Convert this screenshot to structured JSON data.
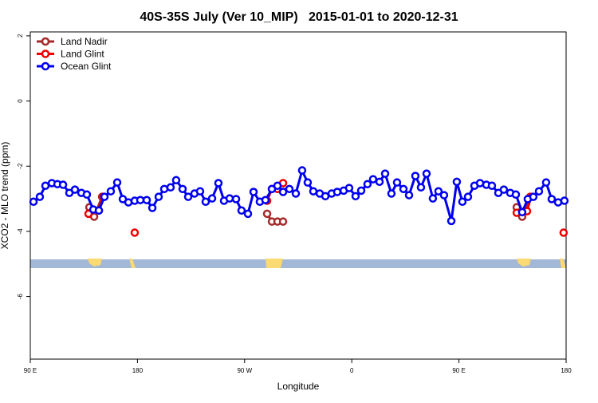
{
  "chart_data": {
    "type": "line",
    "title": "40S-35S July (Ver 10_MIP)   2015-01-01 to 2020-12-31",
    "xlabel": "Longitude",
    "ylabel": "XCO2 - MLO trend (ppm)",
    "xlim": [
      90,
      540
    ],
    "ylim": [
      -7.92,
      2.12
    ],
    "xticks": [
      {
        "value": 90,
        "label": "90 E"
      },
      180,
      {
        "value": 270,
        "label": "90 W"
      },
      {
        "value": 360,
        "label": "0"
      },
      {
        "value": 450,
        "label": "90 E"
      },
      {
        "value": 540,
        "label": "180"
      }
    ],
    "yticks": [
      2,
      0,
      -2,
      -4,
      -6
    ],
    "legend": "top-left",
    "series": [
      {
        "name": "Land Nadir",
        "color": "#a52a2a",
        "x": [
          139.6,
          143.6,
          150.3,
          null,
          288.9,
          292.9,
          297.6,
          302.3,
          null,
          498.5,
          503.1,
          509.8
        ],
        "values": [
          -3.26,
          -3.55,
          -2.94,
          null,
          -3.46,
          -3.7,
          -3.7,
          -3.7,
          null,
          -3.26,
          -3.55,
          -2.94
        ]
      },
      {
        "name": "Land Glint",
        "color": "#ee0000",
        "x": [
          138.9,
          147.6,
          150.9,
          null,
          177.7,
          null,
          288.9,
          292.9,
          297.6,
          302.3,
          null,
          498.5,
          507.2,
          510.5,
          null,
          537.9
        ],
        "values": [
          -3.46,
          -3.36,
          -2.94,
          null,
          -4.04,
          null,
          -3.06,
          -2.7,
          -2.7,
          -2.52,
          null,
          -3.43,
          -3.38,
          -2.94,
          null,
          -4.04
        ]
      },
      {
        "name": "Ocean Glint",
        "color": "#0000ee",
        "x": [
          92.7,
          98.0,
          102.7,
          108.1,
          112.8,
          117.5,
          122.8,
          127.5,
          132.9,
          137.5,
          142.9,
          147.6,
          152.3,
          157.6,
          163.0,
          167.7,
          172.4,
          177.7,
          182.4,
          187.8,
          192.5,
          197.8,
          202.5,
          207.8,
          212.5,
          217.9,
          222.6,
          227.9,
          232.6,
          237.3,
          242.7,
          248.0,
          252.7,
          257.4,
          262.8,
          267.4,
          272.8,
          277.5,
          282.8,
          287.5,
          292.9,
          297.6,
          302.3,
          307.6,
          313.0,
          318.3,
          323.0,
          327.7,
          333.1,
          337.8,
          343.1,
          347.8,
          353.2,
          357.8,
          363.2,
          367.9,
          373.2,
          377.9,
          383.3,
          388.0,
          393.3,
          398.0,
          403.4,
          408.1,
          413.4,
          418.1,
          422.8,
          428.1,
          432.8,
          437.5,
          443.6,
          448.2,
          452.9,
          457.6,
          463.0,
          467.7,
          473.0,
          477.7,
          483.1,
          487.7,
          493.1,
          497.8,
          503.1,
          507.8,
          512.5,
          517.2,
          523.2,
          527.9,
          533.3,
          538.6
        ],
        "values": [
          -3.09,
          -2.94,
          -2.6,
          -2.52,
          -2.55,
          -2.57,
          -2.82,
          -2.72,
          -2.82,
          -2.87,
          -3.33,
          -3.36,
          -2.94,
          -2.77,
          -2.5,
          -3.01,
          -3.11,
          -3.06,
          -3.04,
          -3.04,
          -3.28,
          -2.94,
          -2.7,
          -2.65,
          -2.43,
          -2.7,
          -2.94,
          -2.84,
          -2.77,
          -3.09,
          -2.99,
          -2.52,
          -3.06,
          -2.99,
          -3.01,
          -3.36,
          -3.46,
          -2.79,
          -3.09,
          -3.04,
          -2.7,
          -2.6,
          -2.79,
          -2.7,
          -2.84,
          -2.13,
          -2.5,
          -2.77,
          -2.84,
          -2.92,
          -2.84,
          -2.79,
          -2.75,
          -2.67,
          -2.92,
          -2.75,
          -2.55,
          -2.4,
          -2.48,
          -2.23,
          -2.84,
          -2.5,
          -2.7,
          -2.89,
          -2.3,
          -2.65,
          -2.23,
          -2.99,
          -2.77,
          -2.89,
          -3.68,
          -2.48,
          -3.09,
          -2.94,
          -2.6,
          -2.52,
          -2.57,
          -2.6,
          -2.82,
          -2.72,
          -2.82,
          -2.87,
          -3.41,
          -3.01,
          -2.94,
          -2.77,
          -2.5,
          -3.01,
          -3.11,
          -3.06
        ]
      }
    ]
  }
}
